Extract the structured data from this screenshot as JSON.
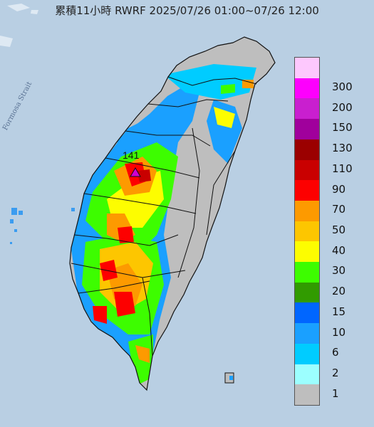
{
  "title": "累積11小時 RWRF 2025/07/26 01:00~07/26 12:00",
  "map_label": "Formosa Strait",
  "peak": {
    "label": "141",
    "marker": "triangle-marker",
    "color": "#d000d0"
  },
  "legend": {
    "steps": [
      {
        "label": "300",
        "color": "#fdc8fd"
      },
      {
        "label": "200",
        "color": "#fd00fd"
      },
      {
        "label": "150",
        "color": "#c91fcf"
      },
      {
        "label": "130",
        "color": "#a0009c"
      },
      {
        "label": "110",
        "color": "#9b0000"
      },
      {
        "label": "90",
        "color": "#c90000"
      },
      {
        "label": "70",
        "color": "#fd0000"
      },
      {
        "label": "50",
        "color": "#fd9a00"
      },
      {
        "label": "40",
        "color": "#fdc600"
      },
      {
        "label": "30",
        "color": "#fdfd00"
      },
      {
        "label": "20",
        "color": "#3dfd00"
      },
      {
        "label": "15",
        "color": "#319b00"
      },
      {
        "label": "10",
        "color": "#0066ff"
      },
      {
        "label": "6",
        "color": "#1aa0ff"
      },
      {
        "label": "2",
        "color": "#00ccff"
      },
      {
        "label": "1",
        "color": "#9cffff"
      },
      {
        "label": "",
        "color": "#bebebe"
      }
    ]
  },
  "colors": {
    "sea": "#b9cfe3",
    "land": "#bebebe",
    "border": "#111111"
  }
}
